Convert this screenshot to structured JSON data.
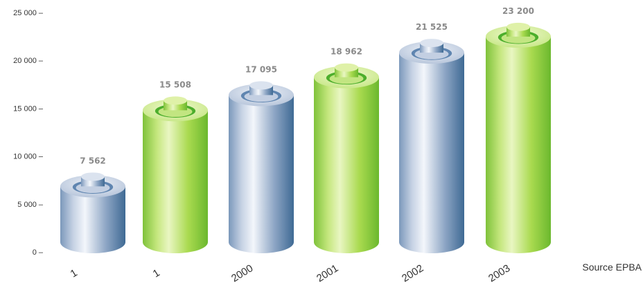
{
  "chart_data": {
    "type": "bar",
    "categories": [
      "1",
      "1",
      "2000",
      "2001",
      "2002",
      "2003"
    ],
    "values": [
      7562,
      15508,
      17095,
      18962,
      21525,
      23200
    ],
    "value_labels": [
      "7 562",
      "15 508",
      "17 095",
      "18 962",
      "21 525",
      "23 200"
    ],
    "bar_colors": [
      "blue",
      "green",
      "blue",
      "green",
      "blue",
      "green"
    ],
    "yticks": [
      0,
      5000,
      10000,
      15000,
      20000,
      25000
    ],
    "ytick_labels": [
      "0 –",
      "5 000 –",
      "10 000 –",
      "15 000 –",
      "20 000 –",
      "25 000 –"
    ],
    "ylim": [
      0,
      25000
    ],
    "source": "Source EPBA",
    "bar_style": "3d battery cylinders",
    "colors": {
      "blue_light": "#e4ebf5",
      "blue_mid": "#aab9d2",
      "blue_dark": "#3f6a94",
      "green_light": "#e6f4b4",
      "green_mid": "#a5d84a",
      "green_dark": "#6bb82e",
      "value_text": "#8a8a8a",
      "axis_text": "#333333"
    }
  }
}
